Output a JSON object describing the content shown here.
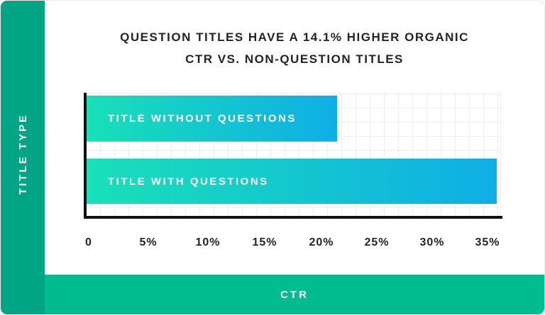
{
  "chart_data": {
    "type": "bar",
    "orientation": "horizontal",
    "title": "QUESTION TITLES HAVE A 14.1% HIGHER ORGANIC CTR VS. NON-QUESTION TITLES",
    "title_lines": [
      "QUESTION TITLES HAVE A 14.1% HIGHER ORGANIC",
      "CTR VS. NON-QUESTION TITLES"
    ],
    "categories": [
      "TITLE WITHOUT QUESTIONS",
      "TITLE WITH QUESTIONS"
    ],
    "values": [
      22,
      36
    ],
    "unit": "%",
    "xlabel": "CTR",
    "ylabel": "TITLE TYPE",
    "xlim": [
      0,
      36.5
    ],
    "xticks": [
      "0",
      "5%",
      "10%",
      "15%",
      "20%",
      "25%",
      "30%",
      "35%"
    ],
    "grid": true,
    "legend": false,
    "colors": {
      "sidebar_green": "#00A583",
      "footer_green": "#00BC8F",
      "bar_gradient_start": "#19E0B8",
      "bar_gradient_end": "#0FAEE6",
      "axis_black": "#101010",
      "grid_gray": "#ededed",
      "text_dark": "#222426"
    }
  }
}
